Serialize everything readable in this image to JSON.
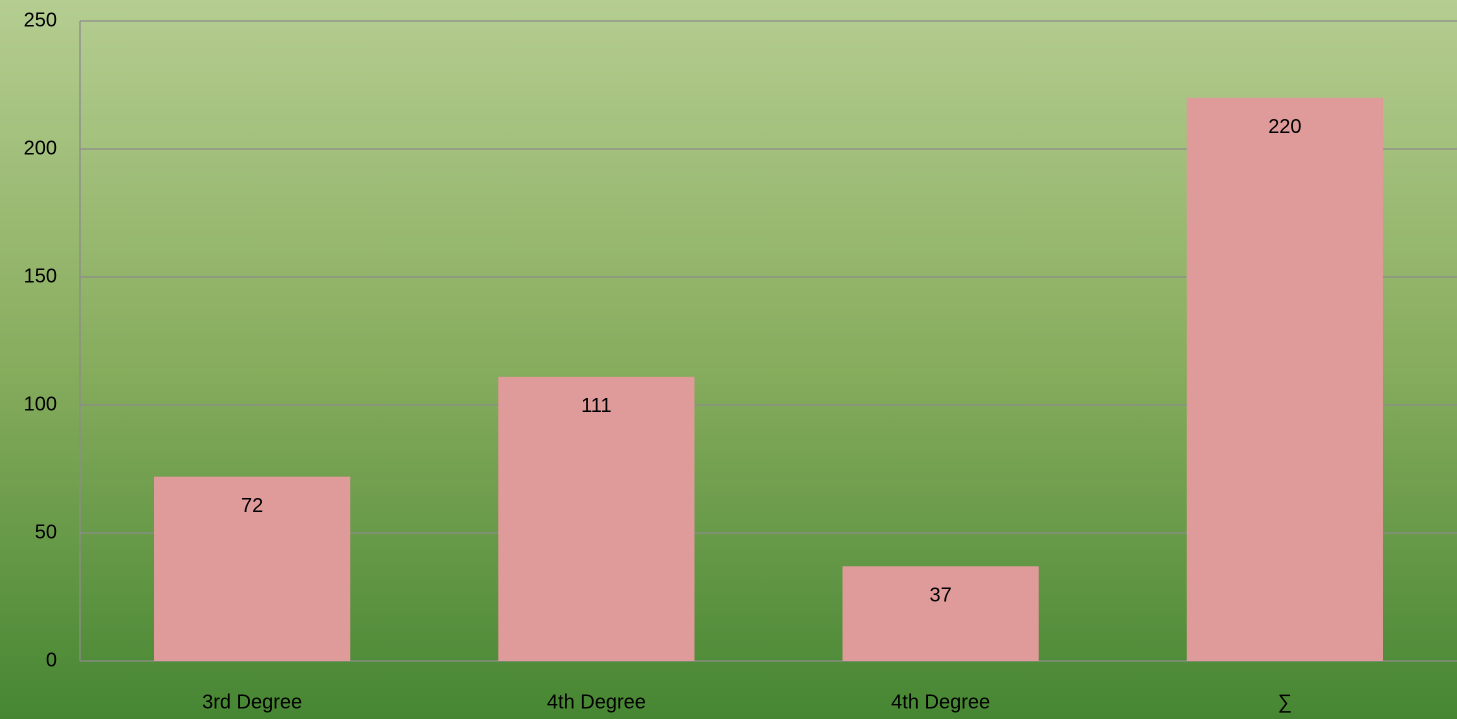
{
  "chart_data": {
    "type": "bar",
    "categories": [
      "3rd Degree",
      "4th Degree",
      "4th Degree",
      "∑"
    ],
    "values": [
      72,
      111,
      37,
      220
    ],
    "color": "#df9a9a",
    "ylim": [
      0,
      250
    ],
    "yticks": [
      0,
      50,
      100,
      150,
      200,
      250
    ],
    "grid": true
  }
}
